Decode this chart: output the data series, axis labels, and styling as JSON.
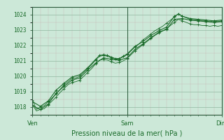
{
  "title": "Pression niveau de la mer( hPa )",
  "bg_color": "#cce8d8",
  "plot_bg_color": "#cce8d8",
  "grid_color_minor": "#b8d8c8",
  "grid_color_major": "#90b8a0",
  "line_color": "#1a6b2a",
  "ylim": [
    1017.5,
    1024.5
  ],
  "xlim": [
    0,
    48
  ],
  "xtick_positions": [
    0,
    24,
    48
  ],
  "xtick_labels": [
    "Ven",
    "Sam",
    "Dim"
  ],
  "ytick_positions": [
    1018,
    1019,
    1020,
    1021,
    1022,
    1023,
    1024
  ],
  "ytick_labels": [
    "1018",
    "1019",
    "1020",
    "1021",
    "1022",
    "1023",
    "1024"
  ],
  "line1_x": [
    0,
    1,
    2,
    3,
    4,
    5,
    6,
    7,
    8,
    9,
    10,
    11,
    12,
    13,
    14,
    15,
    16,
    17,
    18,
    19,
    20,
    21,
    22,
    23,
    24,
    25,
    26,
    27,
    28,
    29,
    30,
    31,
    32,
    33,
    34,
    35,
    36,
    37,
    38,
    39,
    40,
    41,
    42,
    43,
    44,
    45,
    46,
    47,
    48
  ],
  "line1_y": [
    1018.45,
    1017.85,
    1018.0,
    1018.1,
    1018.35,
    1018.6,
    1018.85,
    1019.15,
    1019.45,
    1019.65,
    1019.85,
    1019.9,
    1020.0,
    1020.25,
    1020.5,
    1020.75,
    1021.05,
    1021.3,
    1021.35,
    1021.3,
    1021.2,
    1021.1,
    1021.15,
    1021.25,
    1021.4,
    1021.65,
    1021.9,
    1022.1,
    1022.35,
    1022.55,
    1022.75,
    1022.95,
    1023.1,
    1023.25,
    1023.45,
    1023.65,
    1023.85,
    1024.05,
    1023.9,
    1023.8,
    1023.7,
    1023.65,
    1023.65,
    1023.6,
    1023.6,
    1023.55,
    1023.6,
    1023.55,
    1023.6
  ],
  "line2_x": [
    0,
    1,
    2,
    3,
    4,
    5,
    6,
    7,
    8,
    9,
    10,
    11,
    12,
    13,
    14,
    15,
    16,
    17,
    18,
    19,
    20,
    21,
    22,
    23,
    24,
    25,
    26,
    27,
    28,
    29,
    30,
    31,
    32,
    33,
    34,
    35,
    36,
    37,
    38,
    39,
    40,
    41,
    42,
    43,
    44,
    45,
    46,
    47,
    48
  ],
  "line2_y": [
    1018.15,
    1017.75,
    1017.85,
    1017.9,
    1018.15,
    1018.4,
    1018.65,
    1018.95,
    1019.2,
    1019.45,
    1019.6,
    1019.65,
    1019.75,
    1020.0,
    1020.25,
    1020.5,
    1020.8,
    1021.05,
    1021.1,
    1021.05,
    1020.95,
    1020.85,
    1020.9,
    1021.0,
    1021.15,
    1021.4,
    1021.65,
    1021.85,
    1022.05,
    1022.25,
    1022.45,
    1022.65,
    1022.8,
    1022.95,
    1023.1,
    1023.3,
    1023.5,
    1023.7,
    1023.6,
    1023.5,
    1023.4,
    1023.35,
    1023.35,
    1023.3,
    1023.3,
    1023.25,
    1023.3,
    1023.25,
    1023.3
  ],
  "line3_x": [
    0,
    2,
    4,
    6,
    8,
    10,
    12,
    14,
    16,
    17,
    18,
    19,
    20,
    21,
    22,
    23,
    24,
    26,
    28,
    30,
    32,
    34,
    36,
    37,
    38,
    40,
    42,
    44,
    46,
    48
  ],
  "line3_y": [
    1018.35,
    1018.05,
    1018.4,
    1019.1,
    1019.55,
    1019.95,
    1020.1,
    1020.55,
    1021.1,
    1021.35,
    1021.4,
    1021.35,
    1021.25,
    1021.15,
    1021.15,
    1021.3,
    1021.45,
    1021.95,
    1022.25,
    1022.65,
    1022.95,
    1023.2,
    1023.9,
    1024.05,
    1023.9,
    1023.75,
    1023.7,
    1023.65,
    1023.6,
    1023.65
  ],
  "line4_x": [
    0,
    2,
    4,
    6,
    8,
    10,
    12,
    14,
    16,
    18,
    20,
    22,
    24,
    26,
    28,
    30,
    32,
    34,
    36,
    38,
    40,
    42,
    44,
    46,
    48
  ],
  "line4_y": [
    1018.1,
    1017.85,
    1018.2,
    1018.9,
    1019.35,
    1019.75,
    1019.9,
    1020.4,
    1020.85,
    1021.2,
    1021.1,
    1021.05,
    1021.2,
    1021.75,
    1022.1,
    1022.5,
    1022.85,
    1023.05,
    1023.7,
    1023.75,
    1023.65,
    1023.6,
    1023.55,
    1023.5,
    1023.55
  ]
}
